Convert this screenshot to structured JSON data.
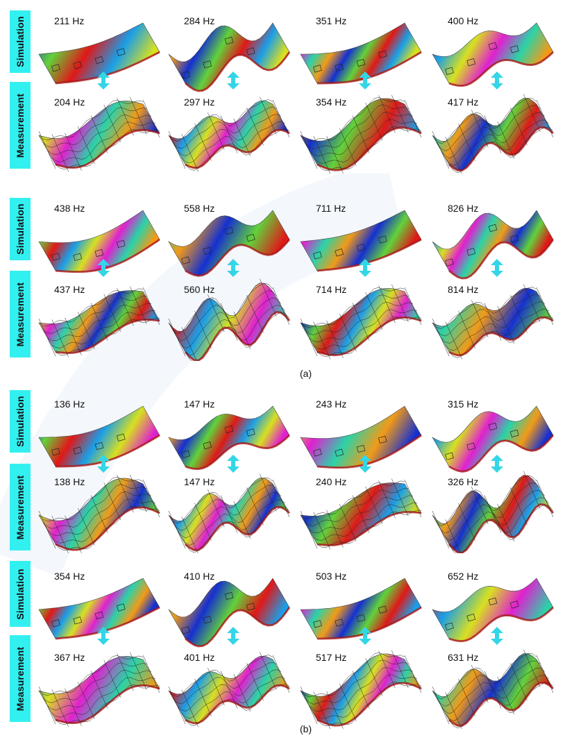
{
  "colors": {
    "side_label_bg": "#33f0f0",
    "arrow": "#33d6e6",
    "mesh": "#222222",
    "colormap": [
      "#1530d0",
      "#1a9ee8",
      "#2ad3a8",
      "#62d23a",
      "#d8e020",
      "#f29a18",
      "#e01818",
      "#e020d0"
    ]
  },
  "panels": [
    {
      "label": "(a)",
      "groups": [
        {
          "sim_label": "Simulation",
          "meas_label": "Measurement",
          "sim_freqs": [
            "211 Hz",
            "284 Hz",
            "351 Hz",
            "400 Hz"
          ],
          "meas_freqs": [
            "204 Hz",
            "297 Hz",
            "354 Hz",
            "417 Hz"
          ]
        },
        {
          "sim_label": "Simulation",
          "meas_label": "Measurement",
          "sim_freqs": [
            "438 Hz",
            "558 Hz",
            "711 Hz",
            "826 Hz"
          ],
          "meas_freqs": [
            "437 Hz",
            "560 Hz",
            "714 Hz",
            "814 Hz"
          ]
        }
      ]
    },
    {
      "label": "(b)",
      "groups": [
        {
          "sim_label": "Simulation",
          "meas_label": "Measurement",
          "sim_freqs": [
            "136 Hz",
            "147 Hz",
            "243 Hz",
            "315 Hz"
          ],
          "meas_freqs": [
            "138 Hz",
            "147 Hz",
            "240 Hz",
            "326 Hz"
          ]
        },
        {
          "sim_label": "Simulation",
          "meas_label": "Measurement",
          "sim_freqs": [
            "354 Hz",
            "410 Hz",
            "503 Hz",
            "652 Hz"
          ],
          "meas_freqs": [
            "367 Hz",
            "401 Hz",
            "517 Hz",
            "631 Hz"
          ]
        }
      ]
    }
  ]
}
